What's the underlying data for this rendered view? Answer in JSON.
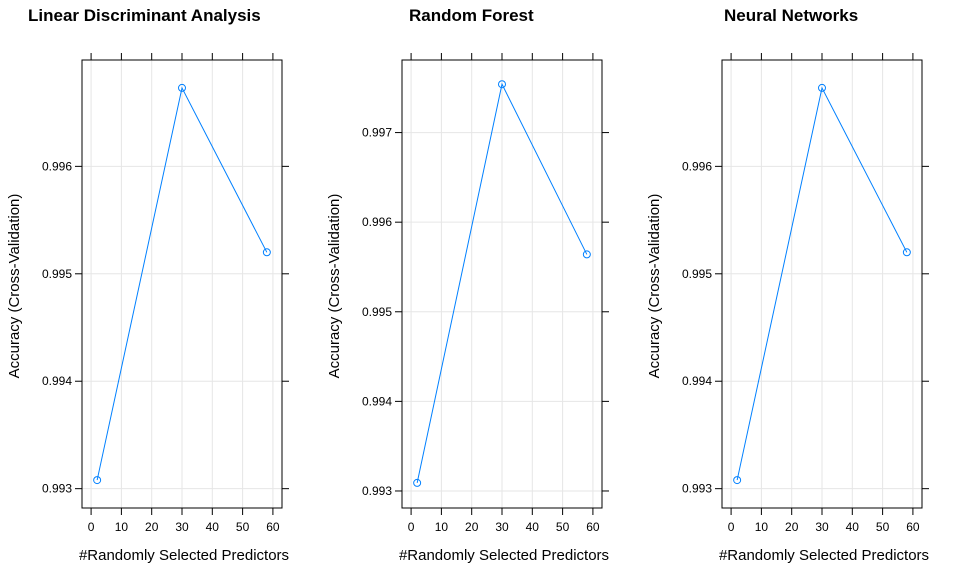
{
  "colors": {
    "series": "#0080ff",
    "grid": "#e6e6e6",
    "axis": "#000000",
    "background": "#ffffff"
  },
  "chart_data": [
    {
      "type": "line",
      "title": "Linear Discriminant Analysis",
      "xlabel": "#Randomly Selected Predictors",
      "ylabel": "Accuracy (Cross-Validation)",
      "x": [
        2,
        30,
        58
      ],
      "series": [
        {
          "values": [
            0.99308,
            0.99673,
            0.9952
          ],
          "marker": "circle"
        }
      ],
      "xlim": [
        -3,
        63
      ],
      "ylim": [
        0.99282,
        0.99699
      ],
      "xticks": [
        0,
        10,
        20,
        30,
        40,
        50,
        60
      ],
      "xtick_labels": [
        "0",
        "10",
        "20",
        "30",
        "40",
        "50",
        "60"
      ],
      "yticks": [
        0.993,
        0.994,
        0.995,
        0.996
      ],
      "ytick_labels": [
        "0.993",
        "0.994",
        "0.995",
        "0.996"
      ],
      "grid": true,
      "legend": "none"
    },
    {
      "type": "line",
      "title": "Random Forest",
      "xlabel": "#Randomly Selected Predictors",
      "ylabel": "Accuracy (Cross-Validation)",
      "x": [
        2,
        30,
        58
      ],
      "series": [
        {
          "values": [
            0.99309,
            0.99754,
            0.99564
          ],
          "marker": "circle"
        }
      ],
      "xlim": [
        -3,
        63
      ],
      "ylim": [
        0.99281,
        0.99781
      ],
      "xticks": [
        0,
        10,
        20,
        30,
        40,
        50,
        60
      ],
      "xtick_labels": [
        "0",
        "10",
        "20",
        "30",
        "40",
        "50",
        "60"
      ],
      "yticks": [
        0.993,
        0.994,
        0.995,
        0.996,
        0.997
      ],
      "ytick_labels": [
        "0.993",
        "0.994",
        "0.995",
        "0.996",
        "0.997"
      ],
      "grid": true,
      "legend": "none"
    },
    {
      "type": "line",
      "title": "Neural Networks",
      "xlabel": "#Randomly Selected Predictors",
      "ylabel": "Accuracy (Cross-Validation)",
      "x": [
        2,
        30,
        58
      ],
      "series": [
        {
          "values": [
            0.99308,
            0.99673,
            0.9952
          ],
          "marker": "circle"
        }
      ],
      "xlim": [
        -3,
        63
      ],
      "ylim": [
        0.99282,
        0.99699
      ],
      "xticks": [
        0,
        10,
        20,
        30,
        40,
        50,
        60
      ],
      "xtick_labels": [
        "0",
        "10",
        "20",
        "30",
        "40",
        "50",
        "60"
      ],
      "yticks": [
        0.993,
        0.994,
        0.995,
        0.996
      ],
      "ytick_labels": [
        "0.993",
        "0.994",
        "0.995",
        "0.996"
      ],
      "grid": true,
      "legend": "none"
    }
  ]
}
